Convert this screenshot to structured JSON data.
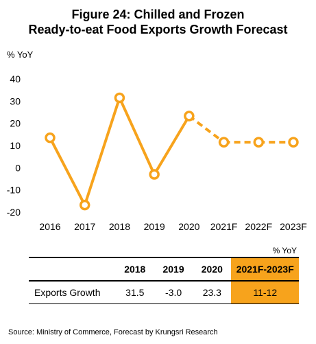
{
  "chart_data": {
    "type": "line",
    "title": "Figure 24: Chilled and Frozen Ready-to-eat Food Exports Growth Forecast",
    "title_lines": [
      "Figure 24: Chilled and Frozen",
      "Ready-to-eat Food Exports Growth Forecast"
    ],
    "ylabel": "% YoY",
    "xlabel": "",
    "categories": [
      "2016",
      "2017",
      "2018",
      "2019",
      "2020",
      "2021F",
      "2022F",
      "2023F"
    ],
    "series": [
      {
        "values": [
          13.5,
          -16.8,
          31.5,
          -3.0,
          23.3,
          11.5,
          11.5,
          11.5
        ],
        "forecast_from_index": 4
      }
    ],
    "ylim": [
      -20,
      40
    ],
    "yticks": [
      "40",
      "30",
      "20",
      "10",
      "0",
      "-10",
      "-20"
    ],
    "grid": false,
    "legend": "none",
    "color": "#f7a31c"
  },
  "table": {
    "unit": "% YoY",
    "headers": [
      "",
      "2018",
      "2019",
      "2020",
      "2021F-2023F"
    ],
    "row": {
      "label": "Exports Growth",
      "values": [
        "31.5",
        "-3.0",
        "23.3",
        "11-12"
      ]
    }
  },
  "source": "Source: Ministry of Commerce, Forecast by Krungsri Research"
}
